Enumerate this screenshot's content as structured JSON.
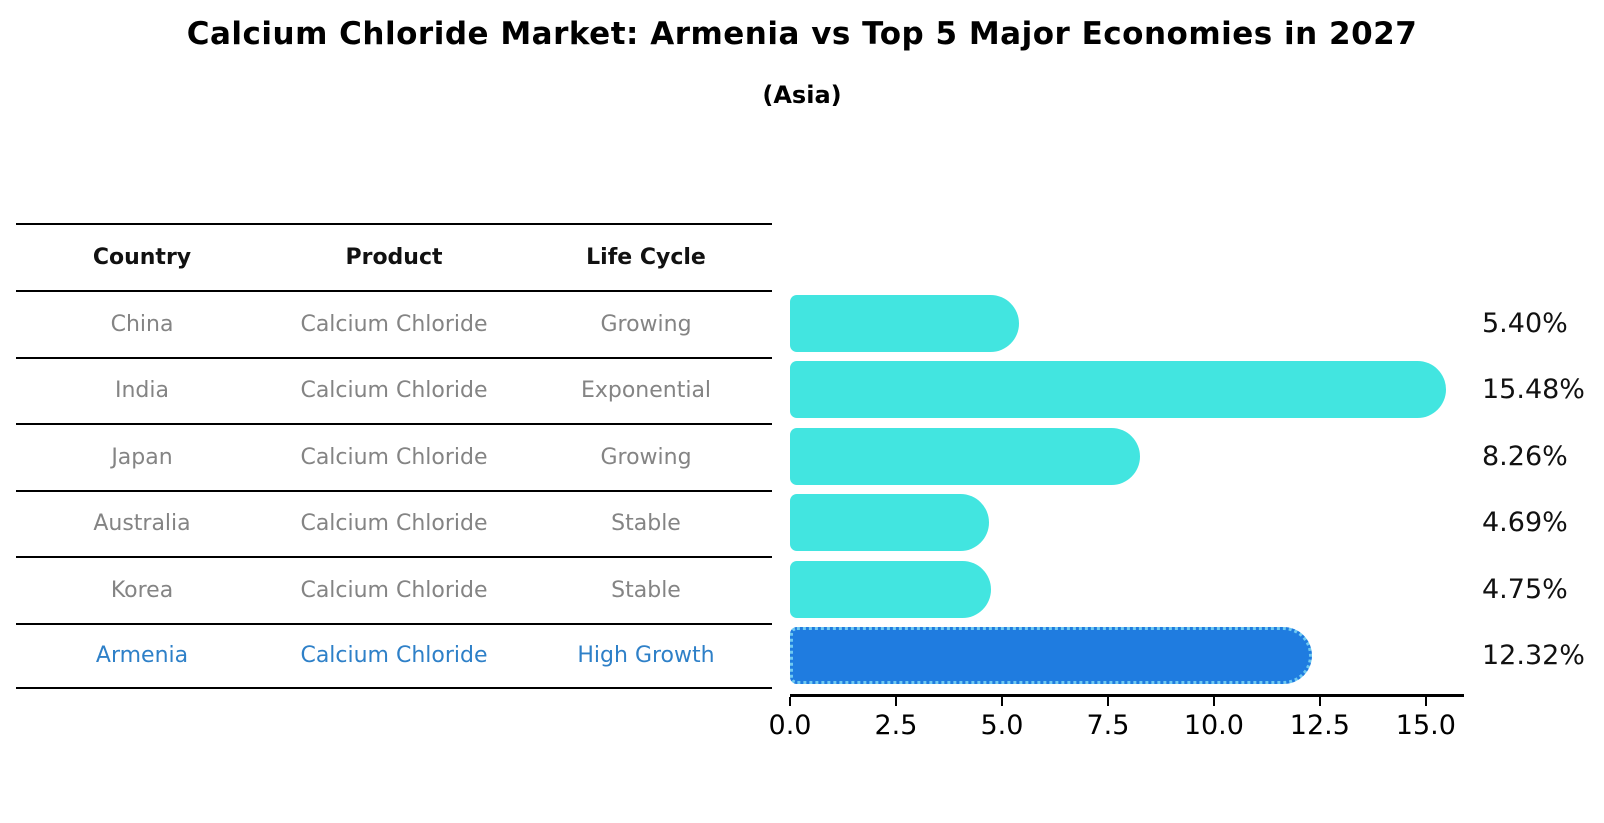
{
  "title": "Calcium Chloride Market: Armenia vs Top 5 Major Economies in 2027",
  "subtitle": "(Asia)",
  "table": {
    "headers": [
      "Country",
      "Product",
      "Life Cycle"
    ],
    "rows": [
      {
        "country": "China",
        "product": "Calcium Chloride",
        "life_cycle": "Growing",
        "highlight": false
      },
      {
        "country": "India",
        "product": "Calcium Chloride",
        "life_cycle": "Exponential",
        "highlight": false
      },
      {
        "country": "Japan",
        "product": "Calcium Chloride",
        "life_cycle": "Growing",
        "highlight": false
      },
      {
        "country": "Australia",
        "product": "Calcium Chloride",
        "life_cycle": "Stable",
        "highlight": false
      },
      {
        "country": "Korea",
        "product": "Calcium Chloride",
        "life_cycle": "Stable",
        "highlight": false
      },
      {
        "country": "Armenia",
        "product": "Calcium Chloride",
        "life_cycle": "High Growth",
        "highlight": true
      }
    ]
  },
  "chart_data": {
    "type": "bar",
    "orientation": "horizontal",
    "title": "Calcium Chloride Market: Armenia vs Top 5 Major Economies in 2027",
    "subtitle": "(Asia)",
    "categories": [
      "China",
      "India",
      "Japan",
      "Australia",
      "Korea",
      "Armenia"
    ],
    "values": [
      5.4,
      15.48,
      8.26,
      4.69,
      4.75,
      12.32
    ],
    "value_labels": [
      "5.40%",
      "15.48%",
      "8.26%",
      "4.69%",
      "4.75%",
      "12.32%"
    ],
    "xlabel": "",
    "ylabel": "",
    "xlim": [
      0,
      15.9
    ],
    "x_ticks": [
      {
        "value": 0.0,
        "label": "0.0"
      },
      {
        "value": 2.5,
        "label": "2.5"
      },
      {
        "value": 5.0,
        "label": "5.0"
      },
      {
        "value": 7.5,
        "label": "7.5"
      },
      {
        "value": 10.0,
        "label": "10.0"
      },
      {
        "value": 12.5,
        "label": "12.5"
      },
      {
        "value": 15.0,
        "label": "15.0"
      }
    ],
    "grid": false,
    "legend": false,
    "bar_color": "#42E5E0",
    "highlight_bar_color": "#1F7CE0",
    "highlight_bar_border_color": "#6FC9F1",
    "highlight_index": 5,
    "text_color_muted": "#848484",
    "text_color_highlight": "#2E80C8"
  }
}
